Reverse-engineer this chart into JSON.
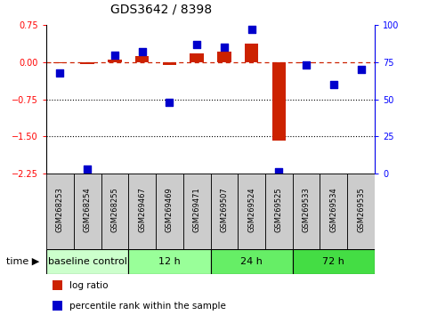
{
  "title": "GDS3642 / 8398",
  "samples": [
    "GSM268253",
    "GSM268254",
    "GSM268255",
    "GSM269467",
    "GSM269469",
    "GSM269471",
    "GSM269507",
    "GSM269524",
    "GSM269525",
    "GSM269533",
    "GSM269534",
    "GSM269535"
  ],
  "log_ratio": [
    -0.02,
    -0.04,
    0.05,
    0.13,
    -0.05,
    0.18,
    0.22,
    0.38,
    -1.58,
    -0.02,
    -0.01,
    -0.01
  ],
  "percentile_rank": [
    68,
    3,
    80,
    82,
    48,
    87,
    85,
    97,
    1,
    73,
    60,
    70
  ],
  "ylim_left": [
    -2.25,
    0.75
  ],
  "ylim_right": [
    0,
    100
  ],
  "yticks_left": [
    -2.25,
    -1.5,
    -0.75,
    0.0,
    0.75
  ],
  "yticks_right": [
    0,
    25,
    50,
    75,
    100
  ],
  "groups": [
    {
      "label": "baseline control",
      "start": 0,
      "end": 3,
      "color": "#ccffcc"
    },
    {
      "label": "12 h",
      "start": 3,
      "end": 6,
      "color": "#99ff99"
    },
    {
      "label": "24 h",
      "start": 6,
      "end": 9,
      "color": "#66ee66"
    },
    {
      "label": "72 h",
      "start": 9,
      "end": 12,
      "color": "#44dd44"
    }
  ],
  "bar_color": "#cc2200",
  "dot_color": "#0000cc",
  "label_bg_color": "#cccccc",
  "legend_items": [
    "log ratio",
    "percentile rank within the sample"
  ],
  "bar_width": 0.5,
  "dot_size": 28,
  "time_label": "time",
  "title_fontsize": 10,
  "tick_fontsize": 7,
  "label_fontsize": 6,
  "group_fontsize": 8
}
